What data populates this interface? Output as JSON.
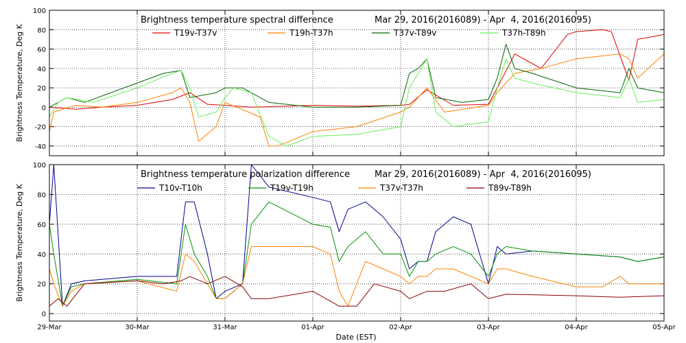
{
  "xaxis": {
    "label": "Date (EST)",
    "ticks": [
      "29-Mar",
      "30-Mar",
      "31-Mar",
      "01-Apr",
      "02-Apr",
      "03-Apr",
      "04-Apr",
      "05-Apr"
    ]
  },
  "colors": {
    "red": "#dd0000",
    "orange": "#ff7f00",
    "darkgreen": "#006400",
    "lightgreen": "#66ee55",
    "navy": "#00008b",
    "green": "#009000",
    "maroon": "#8b0000"
  },
  "chart_data": [
    {
      "type": "line",
      "title_left": "Brightness temperature spectral difference",
      "title_right": "Mar 29, 2016(2016089) - Apr  4, 2016(2016095)",
      "ylabel": "Brightness Temperature, Deg K",
      "ylim": [
        -50,
        100
      ],
      "yticks": [
        "-40",
        "-20",
        "0",
        "20",
        "40",
        "60",
        "80",
        "100"
      ],
      "xlim": [
        0,
        7
      ],
      "series": [
        {
          "name": "T19v-T37v",
          "color": "#dd0000",
          "x": [
            0,
            0.3,
            0.6,
            1.0,
            1.4,
            1.6,
            1.8,
            2.0,
            2.3,
            3.0,
            3.5,
            4.0,
            4.1,
            4.3,
            4.6,
            5.0,
            5.1,
            5.3,
            5.6,
            5.9,
            6.0,
            6.3,
            6.4,
            6.6,
            6.7,
            7.0
          ],
          "y": [
            0,
            -2,
            0,
            2,
            8,
            15,
            3,
            2,
            0,
            2,
            1,
            2,
            3,
            18,
            2,
            3,
            20,
            55,
            40,
            75,
            78,
            80,
            78,
            28,
            70,
            75
          ]
        },
        {
          "name": "T19h-T37h",
          "color": "#ff7f00",
          "x": [
            0,
            0.05,
            0.3,
            0.6,
            1.0,
            1.4,
            1.5,
            1.6,
            1.7,
            1.9,
            2.0,
            2.4,
            2.5,
            2.6,
            3.0,
            3.5,
            4.0,
            4.1,
            4.3,
            4.5,
            5.0,
            5.1,
            5.3,
            5.6,
            6.0,
            6.5,
            6.6,
            6.7,
            7.0
          ],
          "y": [
            -25,
            -5,
            2,
            0,
            5,
            15,
            20,
            5,
            -35,
            -20,
            5,
            -10,
            -40,
            -40,
            -25,
            -20,
            -5,
            0,
            20,
            -5,
            2,
            15,
            35,
            40,
            50,
            55,
            50,
            30,
            55
          ]
        },
        {
          "name": "T37v-T89v",
          "color": "#006400",
          "x": [
            0,
            0.2,
            0.4,
            0.7,
            1.0,
            1.3,
            1.5,
            1.6,
            1.9,
            2.0,
            2.2,
            2.5,
            3.0,
            3.5,
            4.0,
            4.1,
            4.2,
            4.3,
            4.4,
            4.7,
            5.0,
            5.1,
            5.2,
            5.3,
            5.5,
            6.0,
            6.5,
            6.6,
            6.7,
            7.0
          ],
          "y": [
            0,
            10,
            5,
            15,
            25,
            35,
            38,
            10,
            15,
            20,
            20,
            5,
            0,
            0,
            2,
            35,
            40,
            50,
            10,
            5,
            8,
            30,
            65,
            40,
            35,
            20,
            15,
            40,
            20,
            15
          ]
        },
        {
          "name": "T37h-T89h",
          "color": "#66ee55",
          "x": [
            0,
            0.1,
            0.2,
            0.5,
            1.0,
            1.4,
            1.5,
            1.6,
            1.7,
            1.9,
            2.0,
            2.1,
            2.3,
            2.5,
            2.7,
            3.0,
            3.5,
            4.0,
            4.1,
            4.3,
            4.4,
            4.6,
            5.0,
            5.1,
            5.2,
            5.3,
            5.5,
            6.0,
            6.5,
            6.6,
            6.7,
            7.0
          ],
          "y": [
            -10,
            5,
            10,
            5,
            20,
            35,
            38,
            20,
            -10,
            -5,
            10,
            20,
            15,
            -30,
            -40,
            -30,
            -28,
            -20,
            20,
            50,
            -5,
            -20,
            -15,
            20,
            50,
            30,
            25,
            15,
            10,
            30,
            5,
            8
          ]
        }
      ]
    },
    {
      "type": "line",
      "title_left": "Brightness temperature polarization difference",
      "title_right": "Mar 29, 2016(2016089) - Apr  4, 2016(2016095)",
      "ylabel": "Brightness Temperature, Deg K",
      "ylim": [
        -5,
        100
      ],
      "yticks": [
        "0",
        "20",
        "40",
        "60",
        "80",
        "100"
      ],
      "xlim": [
        0,
        7
      ],
      "series": [
        {
          "name": "T10v-T10h",
          "color": "#00008b",
          "x": [
            0,
            0.05,
            0.15,
            0.25,
            0.4,
            1.0,
            1.45,
            1.55,
            1.65,
            1.8,
            1.9,
            2.0,
            2.2,
            2.3,
            2.5,
            3.0,
            3.2,
            3.3,
            3.4,
            3.6,
            3.8,
            4.0,
            4.1,
            4.2,
            4.3,
            4.4,
            4.6,
            4.8,
            5.0,
            5.1,
            5.2,
            5.5,
            6.0,
            6.5,
            6.7,
            7.0
          ],
          "y": [
            60,
            100,
            5,
            20,
            22,
            25,
            25,
            75,
            75,
            40,
            10,
            15,
            20,
            100,
            85,
            78,
            75,
            55,
            70,
            75,
            65,
            50,
            30,
            35,
            35,
            55,
            65,
            60,
            20,
            45,
            40,
            42,
            40,
            38,
            35,
            38
          ]
        },
        {
          "name": "T19v-T19h",
          "color": "#009000",
          "x": [
            0,
            0.05,
            0.15,
            0.25,
            0.4,
            1.0,
            1.45,
            1.55,
            1.65,
            1.8,
            1.9,
            2.0,
            2.2,
            2.3,
            2.5,
            3.0,
            3.2,
            3.3,
            3.4,
            3.6,
            3.8,
            4.0,
            4.1,
            4.2,
            4.3,
            4.4,
            4.6,
            4.8,
            5.0,
            5.1,
            5.2,
            5.5,
            6.0,
            6.5,
            6.7,
            7.0
          ],
          "y": [
            60,
            40,
            5,
            18,
            20,
            23,
            20,
            60,
            40,
            25,
            10,
            10,
            20,
            60,
            75,
            60,
            58,
            35,
            45,
            55,
            40,
            40,
            25,
            35,
            35,
            40,
            45,
            40,
            25,
            40,
            45,
            42,
            40,
            38,
            35,
            38
          ]
        },
        {
          "name": "T37v-T37h",
          "color": "#ff7f00",
          "x": [
            0,
            0.05,
            0.15,
            0.25,
            0.4,
            1.0,
            1.45,
            1.55,
            1.65,
            1.8,
            1.9,
            2.0,
            2.2,
            2.3,
            2.5,
            3.0,
            3.2,
            3.3,
            3.4,
            3.6,
            3.8,
            4.0,
            4.1,
            4.2,
            4.3,
            4.4,
            4.6,
            4.8,
            5.0,
            5.1,
            5.2,
            5.5,
            6.0,
            6.3,
            6.5,
            6.6,
            6.8,
            7.0
          ],
          "y": [
            30,
            20,
            5,
            15,
            20,
            22,
            15,
            40,
            35,
            20,
            10,
            10,
            20,
            45,
            45,
            45,
            40,
            15,
            5,
            35,
            30,
            25,
            20,
            25,
            25,
            30,
            30,
            25,
            20,
            30,
            30,
            25,
            18,
            18,
            25,
            20,
            20,
            20
          ]
        },
        {
          "name": "T89v-T89h",
          "color": "#8b0000",
          "x": [
            0,
            0.1,
            0.2,
            0.4,
            1.0,
            1.3,
            1.5,
            1.6,
            1.8,
            2.0,
            2.2,
            2.3,
            2.5,
            3.0,
            3.3,
            3.5,
            3.7,
            4.0,
            4.1,
            4.3,
            4.5,
            4.8,
            5.0,
            5.2,
            6.0,
            6.5,
            7.0
          ],
          "y": [
            5,
            10,
            5,
            20,
            22,
            20,
            22,
            25,
            20,
            25,
            18,
            10,
            10,
            15,
            5,
            5,
            20,
            15,
            10,
            15,
            15,
            20,
            10,
            13,
            12,
            11,
            12
          ]
        }
      ]
    }
  ]
}
